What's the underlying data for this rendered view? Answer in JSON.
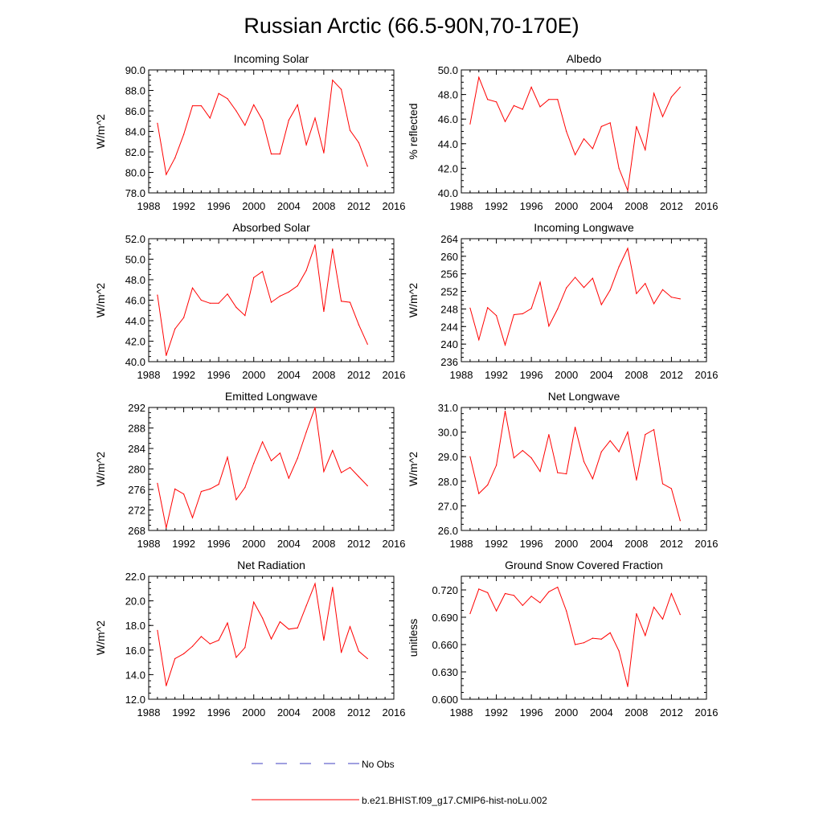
{
  "figure": {
    "title": "Russian Arctic (66.5-90N,70-170E)",
    "line_color": "#ff0000",
    "obs_color": "#4040c0"
  },
  "legend": [
    {
      "label": "No Obs",
      "style": "dashed",
      "color": "#4040c0"
    },
    {
      "label": "b.e21.BHIST.f09_g17.CMIP6-hist-noLu.002",
      "style": "solid",
      "color": "#ff0000"
    }
  ],
  "chart_data": [
    {
      "type": "line",
      "title": "Incoming Solar",
      "ylabel": "W/m^2",
      "xlim": [
        1988,
        2016
      ],
      "ylim": [
        78,
        90
      ],
      "xticks": [
        "1988",
        "1992",
        "1996",
        "2000",
        "2004",
        "2008",
        "2012",
        "2016"
      ],
      "yticks": [
        "78.0",
        "80.0",
        "82.0",
        "84.0",
        "86.0",
        "88.0",
        "90.0"
      ],
      "x": [
        1989,
        1990,
        1991,
        1992,
        1993,
        1994,
        1995,
        1996,
        1997,
        1998,
        1999,
        2000,
        2001,
        2002,
        2003,
        2004,
        2005,
        2006,
        2007,
        2008,
        2009,
        2010,
        2011,
        2012,
        2013
      ],
      "series": [
        {
          "values": [
            84.8,
            79.8,
            81.4,
            83.7,
            86.5,
            86.5,
            85.3,
            87.7,
            87.2,
            86.0,
            84.6,
            86.6,
            85.1,
            81.8,
            81.8,
            85.1,
            86.6,
            82.7,
            85.3,
            81.9,
            89.0,
            88.1,
            84.1,
            82.9,
            80.6
          ]
        }
      ]
    },
    {
      "type": "line",
      "title": "Albedo",
      "ylabel": "% reflected",
      "xlim": [
        1988,
        2016
      ],
      "ylim": [
        40,
        50
      ],
      "xticks": [
        "1988",
        "1992",
        "1996",
        "2000",
        "2004",
        "2008",
        "2012",
        "2016"
      ],
      "yticks": [
        "40.0",
        "42.0",
        "44.0",
        "46.0",
        "48.0",
        "50.0"
      ],
      "x": [
        1989,
        1990,
        1991,
        1992,
        1993,
        1994,
        1995,
        1996,
        1997,
        1998,
        1999,
        2000,
        2001,
        2002,
        2003,
        2004,
        2005,
        2006,
        2007,
        2008,
        2009,
        2010,
        2011,
        2012,
        2013
      ],
      "series": [
        {
          "values": [
            45.6,
            49.4,
            47.6,
            47.4,
            45.8,
            47.1,
            46.8,
            48.6,
            47.0,
            47.6,
            47.6,
            45.0,
            43.1,
            44.4,
            43.6,
            45.4,
            45.7,
            42.0,
            40.2,
            45.4,
            43.5,
            48.1,
            46.2,
            47.8,
            48.6
          ]
        }
      ]
    },
    {
      "type": "line",
      "title": "Absorbed Solar",
      "ylabel": "W/m^2",
      "xlim": [
        1988,
        2016
      ],
      "ylim": [
        40,
        52
      ],
      "xticks": [
        "1988",
        "1992",
        "1996",
        "2000",
        "2004",
        "2008",
        "2012",
        "2016"
      ],
      "yticks": [
        "40.0",
        "42.0",
        "44.0",
        "46.0",
        "48.0",
        "50.0",
        "52.0"
      ],
      "x": [
        1989,
        1990,
        1991,
        1992,
        1993,
        1994,
        1995,
        1996,
        1997,
        1998,
        1999,
        2000,
        2001,
        2002,
        2003,
        2004,
        2005,
        2006,
        2007,
        2008,
        2009,
        2010,
        2011,
        2012,
        2013
      ],
      "series": [
        {
          "values": [
            46.5,
            40.6,
            43.2,
            44.3,
            47.2,
            46.0,
            45.7,
            45.7,
            46.6,
            45.3,
            44.5,
            48.2,
            48.8,
            45.8,
            46.4,
            46.8,
            47.4,
            48.9,
            51.4,
            44.9,
            51.0,
            45.9,
            45.8,
            43.6,
            41.7
          ]
        }
      ]
    },
    {
      "type": "line",
      "title": "Incoming Longwave",
      "ylabel": "W/m^2",
      "xlim": [
        1988,
        2016
      ],
      "ylim": [
        236,
        264
      ],
      "xticks": [
        "1988",
        "1992",
        "1996",
        "2000",
        "2004",
        "2008",
        "2012",
        "2016"
      ],
      "yticks": [
        "236",
        "240",
        "244",
        "248",
        "252",
        "256",
        "260",
        "264"
      ],
      "x": [
        1989,
        1990,
        1991,
        1992,
        1993,
        1994,
        1995,
        1996,
        1997,
        1998,
        1999,
        2000,
        2001,
        2002,
        2003,
        2004,
        2005,
        2006,
        2007,
        2008,
        2009,
        2010,
        2011,
        2012,
        2013
      ],
      "series": [
        {
          "values": [
            248.2,
            241.0,
            248.3,
            246.5,
            239.8,
            246.7,
            246.9,
            248.1,
            254.1,
            244.1,
            248.0,
            252.8,
            255.2,
            252.9,
            255.0,
            249.0,
            252.3,
            257.6,
            261.8,
            251.5,
            253.8,
            249.2,
            252.4,
            250.7,
            250.3
          ]
        }
      ]
    },
    {
      "type": "line",
      "title": "Emitted Longwave",
      "ylabel": "W/m^2",
      "xlim": [
        1988,
        2016
      ],
      "ylim": [
        268,
        292
      ],
      "xticks": [
        "1988",
        "1992",
        "1996",
        "2000",
        "2004",
        "2008",
        "2012",
        "2016"
      ],
      "yticks": [
        "268",
        "272",
        "276",
        "280",
        "284",
        "288",
        "292"
      ],
      "x": [
        1989,
        1990,
        1991,
        1992,
        1993,
        1994,
        1995,
        1996,
        1997,
        1998,
        1999,
        2000,
        2001,
        2002,
        2003,
        2004,
        2005,
        2006,
        2007,
        2008,
        2009,
        2010,
        2011,
        2012,
        2013
      ],
      "series": [
        {
          "values": [
            277.2,
            268.5,
            276.1,
            275.1,
            270.5,
            275.6,
            276.1,
            277.0,
            282.3,
            274.0,
            276.4,
            281.1,
            285.3,
            281.6,
            283.1,
            278.2,
            282.1,
            287.2,
            292.0,
            279.5,
            283.6,
            279.3,
            280.3,
            278.5,
            276.7
          ]
        }
      ]
    },
    {
      "type": "line",
      "title": "Net Longwave",
      "ylabel": "W/m^2",
      "xlim": [
        1988,
        2016
      ],
      "ylim": [
        26,
        31
      ],
      "xticks": [
        "1988",
        "1992",
        "1996",
        "2000",
        "2004",
        "2008",
        "2012",
        "2016"
      ],
      "yticks": [
        "26.0",
        "27.0",
        "28.0",
        "29.0",
        "30.0",
        "31.0"
      ],
      "x": [
        1989,
        1990,
        1991,
        1992,
        1993,
        1994,
        1995,
        1996,
        1997,
        1998,
        1999,
        2000,
        2001,
        2002,
        2003,
        2004,
        2005,
        2006,
        2007,
        2008,
        2009,
        2010,
        2011,
        2012,
        2013
      ],
      "series": [
        {
          "values": [
            29.0,
            27.5,
            27.85,
            28.65,
            30.85,
            28.95,
            29.25,
            28.95,
            28.4,
            29.9,
            28.35,
            28.3,
            30.2,
            28.8,
            28.1,
            29.2,
            29.65,
            29.2,
            30.0,
            28.05,
            29.9,
            30.1,
            27.9,
            27.7,
            26.4
          ]
        }
      ]
    },
    {
      "type": "line",
      "title": "Net Radiation",
      "ylabel": "W/m^2",
      "xlim": [
        1988,
        2016
      ],
      "ylim": [
        12,
        22
      ],
      "xticks": [
        "1988",
        "1992",
        "1996",
        "2000",
        "2004",
        "2008",
        "2012",
        "2016"
      ],
      "yticks": [
        "12.0",
        "14.0",
        "16.0",
        "18.0",
        "20.0",
        "22.0"
      ],
      "x": [
        1989,
        1990,
        1991,
        1992,
        1993,
        1994,
        1995,
        1996,
        1997,
        1998,
        1999,
        2000,
        2001,
        2002,
        2003,
        2004,
        2005,
        2006,
        2007,
        2008,
        2009,
        2010,
        2011,
        2012,
        2013
      ],
      "series": [
        {
          "values": [
            17.6,
            13.1,
            15.3,
            15.7,
            16.3,
            17.1,
            16.5,
            16.8,
            18.2,
            15.4,
            16.2,
            19.9,
            18.6,
            16.9,
            18.3,
            17.7,
            17.8,
            19.6,
            21.4,
            16.8,
            21.1,
            15.8,
            17.9,
            15.9,
            15.3
          ]
        }
      ]
    },
    {
      "type": "line",
      "title": "Ground Snow Covered Fraction",
      "ylabel": "unitless",
      "xlim": [
        1988,
        2016
      ],
      "ylim": [
        0.6,
        0.735
      ],
      "xticks": [
        "1988",
        "1992",
        "1996",
        "2000",
        "2004",
        "2008",
        "2012",
        "2016"
      ],
      "yticks": [
        "0.600",
        "0.630",
        "0.660",
        "0.690",
        "0.720"
      ],
      "ytick_values": [
        0.6,
        0.63,
        0.66,
        0.69,
        0.72
      ],
      "x": [
        1989,
        1990,
        1991,
        1992,
        1993,
        1994,
        1995,
        1996,
        1997,
        1998,
        1999,
        2000,
        2001,
        2002,
        2003,
        2004,
        2005,
        2006,
        2007,
        2008,
        2009,
        2010,
        2011,
        2012,
        2013
      ],
      "series": [
        {
          "values": [
            0.694,
            0.721,
            0.717,
            0.697,
            0.716,
            0.714,
            0.703,
            0.713,
            0.706,
            0.718,
            0.723,
            0.697,
            0.66,
            0.662,
            0.667,
            0.666,
            0.673,
            0.653,
            0.614,
            0.694,
            0.67,
            0.701,
            0.688,
            0.716,
            0.693
          ]
        }
      ]
    }
  ]
}
